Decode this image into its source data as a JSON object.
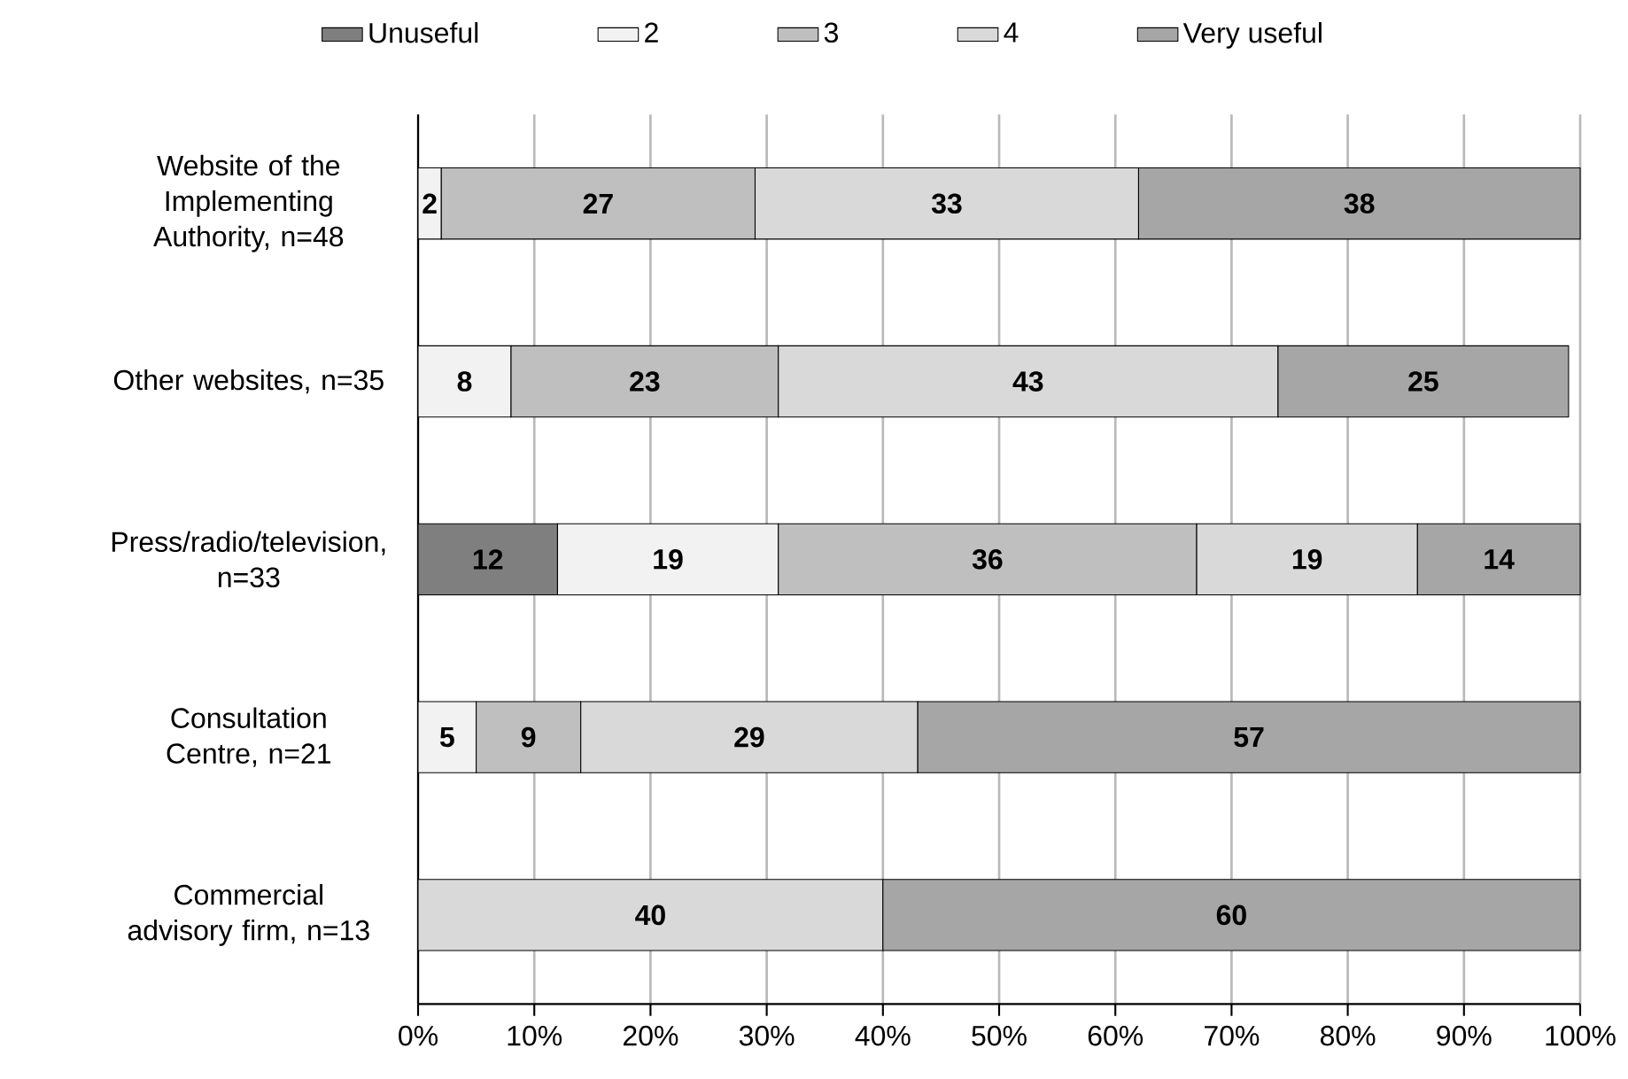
{
  "chart_data": {
    "type": "bar",
    "orientation": "horizontal",
    "stacked": true,
    "categories": [
      "Website of the Implementing Authority, n=48",
      "Other websites, n=35",
      "Press/radio/television, n=33",
      "Consultation Centre, n=21",
      "Commercial advisory firm, n=13"
    ],
    "series": [
      {
        "name": "Unuseful",
        "color": "#7f7f7f",
        "values": [
          null,
          null,
          12,
          null,
          null
        ]
      },
      {
        "name": "2",
        "color": "#f2f2f2",
        "values": [
          2,
          8,
          19,
          5,
          null
        ]
      },
      {
        "name": "3",
        "color": "#bfbfbf",
        "values": [
          27,
          23,
          36,
          9,
          null
        ]
      },
      {
        "name": "4",
        "color": "#d9d9d9",
        "values": [
          33,
          43,
          19,
          29,
          40
        ]
      },
      {
        "name": "Very useful",
        "color": "#a6a6a6",
        "values": [
          38,
          25,
          14,
          57,
          60
        ]
      }
    ],
    "xlim": [
      0,
      100
    ],
    "xticks": [
      {
        "value": 0,
        "label": "0%"
      },
      {
        "value": 10,
        "label": "10%"
      },
      {
        "value": 20,
        "label": "20%"
      },
      {
        "value": 30,
        "label": "30%"
      },
      {
        "value": 40,
        "label": "40%"
      },
      {
        "value": 50,
        "label": "50%"
      },
      {
        "value": 60,
        "label": "60%"
      },
      {
        "value": 70,
        "label": "70%"
      },
      {
        "value": 80,
        "label": "80%"
      },
      {
        "value": 90,
        "label": "90%"
      },
      {
        "value": 100,
        "label": "100%"
      }
    ],
    "grid": "x",
    "legend": "top",
    "data_labels": true
  }
}
